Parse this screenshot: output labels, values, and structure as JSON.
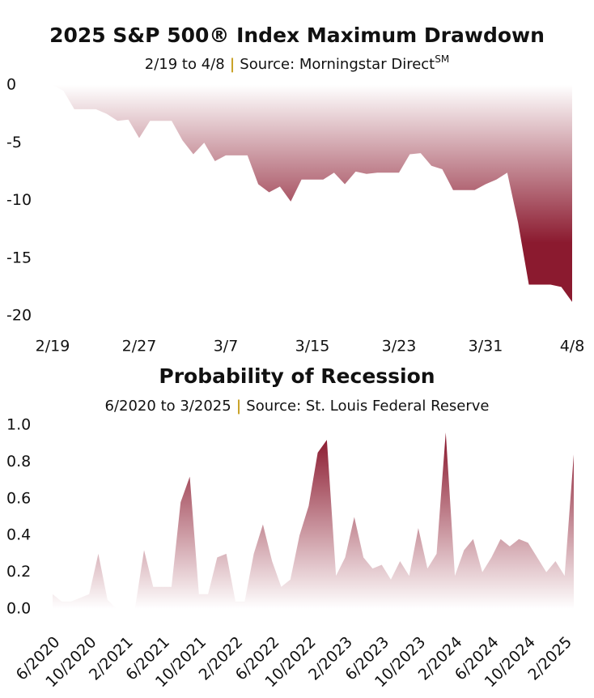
{
  "chart_data": [
    {
      "type": "area",
      "title": "2025 S&P 500® Index Maximum Drawdown",
      "subtitle": {
        "period": "2/19 to 4/8",
        "separator": "|",
        "source": "Source: Morningstar Direct",
        "mark": "SM"
      },
      "categories": [
        "2/19",
        null,
        null,
        null,
        null,
        null,
        null,
        null,
        "2/27",
        null,
        null,
        null,
        null,
        null,
        null,
        null,
        "3/7",
        null,
        null,
        null,
        null,
        null,
        null,
        null,
        "3/15",
        null,
        null,
        null,
        null,
        null,
        null,
        null,
        "3/23",
        null,
        null,
        null,
        null,
        null,
        null,
        null,
        "3/31",
        null,
        null,
        null,
        null,
        null,
        null,
        null,
        "4/8"
      ],
      "values": [
        0,
        -0.5,
        -2.1,
        -2.1,
        -2.1,
        -2.5,
        -3.1,
        -3.0,
        -4.6,
        -3.1,
        -3.1,
        -3.1,
        -4.8,
        -6.0,
        -5.0,
        -6.6,
        -6.1,
        -6.1,
        -6.1,
        -8.6,
        -9.3,
        -8.8,
        -10.1,
        -8.2,
        -8.2,
        -8.2,
        -7.6,
        -8.6,
        -7.5,
        -7.7,
        -7.6,
        -7.6,
        -7.6,
        -6.0,
        -5.9,
        -7.0,
        -7.3,
        -9.1,
        -9.1,
        -9.1,
        -8.6,
        -8.2,
        -7.6,
        -11.9,
        -17.3,
        -17.3,
        -17.3,
        -17.5,
        -18.8
      ],
      "color": "#8b1a2f",
      "ylim": [
        -20,
        0
      ],
      "yticks": [
        0,
        -5,
        -10,
        -15,
        -20
      ],
      "grid": false
    },
    {
      "type": "area",
      "title": "Probability of Recession",
      "subtitle": {
        "period": "6/2020 to 3/2025",
        "separator": "|",
        "source": "Source: St. Louis Federal Reserve"
      },
      "categories": [
        "6/2020",
        null,
        null,
        null,
        "10/2020",
        null,
        null,
        null,
        "2/2021",
        null,
        null,
        null,
        "6/2021",
        null,
        null,
        null,
        "10/2021",
        null,
        null,
        null,
        "2/2022",
        null,
        null,
        null,
        "6/2022",
        null,
        null,
        null,
        "10/2022",
        null,
        null,
        null,
        "2/2023",
        null,
        null,
        null,
        "6/2023",
        null,
        null,
        null,
        "10/2023",
        null,
        null,
        null,
        "2/2024",
        null,
        null,
        null,
        "6/2024",
        null,
        null,
        null,
        "10/2024",
        null,
        null,
        null,
        "2/2025",
        null
      ],
      "values": [
        0.08,
        0.04,
        0.04,
        0.06,
        0.08,
        0.3,
        0.05,
        0.0,
        0.0,
        0.0,
        0.32,
        0.12,
        0.12,
        0.12,
        0.58,
        0.72,
        0.08,
        0.08,
        0.28,
        0.3,
        0.04,
        0.04,
        0.3,
        0.46,
        0.26,
        0.12,
        0.16,
        0.4,
        0.56,
        0.85,
        0.92,
        0.18,
        0.28,
        0.5,
        0.28,
        0.22,
        0.24,
        0.16,
        0.26,
        0.18,
        0.44,
        0.22,
        0.3,
        0.96,
        0.18,
        0.32,
        0.38,
        0.2,
        0.28,
        0.38,
        0.34,
        0.38,
        0.36,
        0.28,
        0.2,
        0.26,
        0.18,
        0.84
      ],
      "color": "#8b1a2f",
      "ylim": [
        0,
        1
      ],
      "yticks": [
        {
          "value": 0,
          "label": "0.0"
        },
        0.2,
        0.4,
        0.6,
        0.8,
        {
          "value": 1,
          "label": "1.0"
        }
      ],
      "grid": false
    }
  ]
}
